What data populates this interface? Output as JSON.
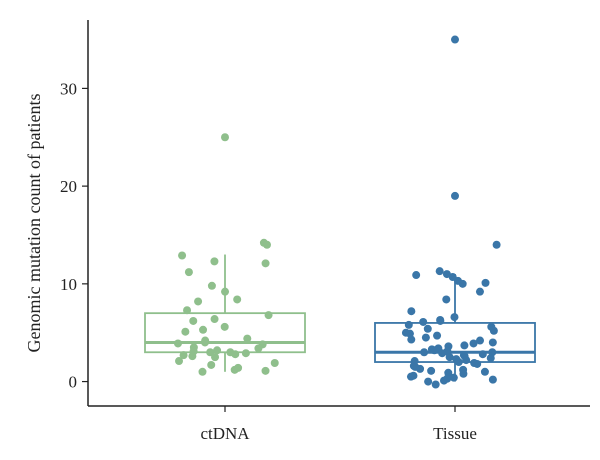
{
  "chart_data": {
    "type": "box",
    "title": "",
    "xlabel": "",
    "ylabel": "Genomic mutation count of patients",
    "ylim": [
      -2.5,
      37
    ],
    "yticks": [
      0,
      10,
      20,
      30
    ],
    "grid": false,
    "categories": [
      "ctDNA",
      "Tissue"
    ],
    "series": [
      {
        "name": "ctDNA",
        "color": "#8fbf8c",
        "box": {
          "whisker_low": 1,
          "q1": 3,
          "median": 4,
          "q3": 7,
          "whisker_high": 13
        },
        "points": [
          25,
          14.2,
          14,
          12.9,
          12.3,
          12.1,
          11.2,
          9.8,
          9.2,
          8.4,
          8.2,
          7.3,
          6.8,
          6.4,
          6.2,
          5.6,
          5.3,
          5.1,
          4.4,
          4.2,
          4,
          3.9,
          3.8,
          3.5,
          3.4,
          3.2,
          3.1,
          3,
          3,
          2.9,
          2.8,
          2.7,
          2.6,
          2.5,
          2.1,
          1.9,
          1.7,
          1.4,
          1.2,
          1.1,
          1
        ]
      },
      {
        "name": "Tissue",
        "color": "#3a76a8",
        "box": {
          "whisker_low": 0,
          "q1": 2,
          "median": 3,
          "q3": 6,
          "whisker_high": 11
        },
        "points": [
          35,
          19,
          14,
          11.3,
          11,
          10.9,
          10.7,
          10.3,
          10.1,
          10,
          9.2,
          8.4,
          7.2,
          6.6,
          6.3,
          6.2,
          6.1,
          5.8,
          5.6,
          5.4,
          5.2,
          5,
          4.9,
          4.7,
          4.5,
          4.3,
          4.2,
          4,
          3.9,
          3.7,
          3.6,
          3.4,
          3.3,
          3.2,
          3.1,
          3,
          3,
          2.9,
          2.8,
          2.7,
          2.6,
          2.5,
          2.4,
          2.3,
          2.2,
          2.1,
          2,
          1.9,
          1.8,
          1.6,
          1.5,
          1.3,
          1.2,
          1.1,
          1,
          0.9,
          0.8,
          0.6,
          0.5,
          0.4,
          0.3,
          0.2,
          0.1,
          0,
          -0.3
        ]
      }
    ]
  }
}
